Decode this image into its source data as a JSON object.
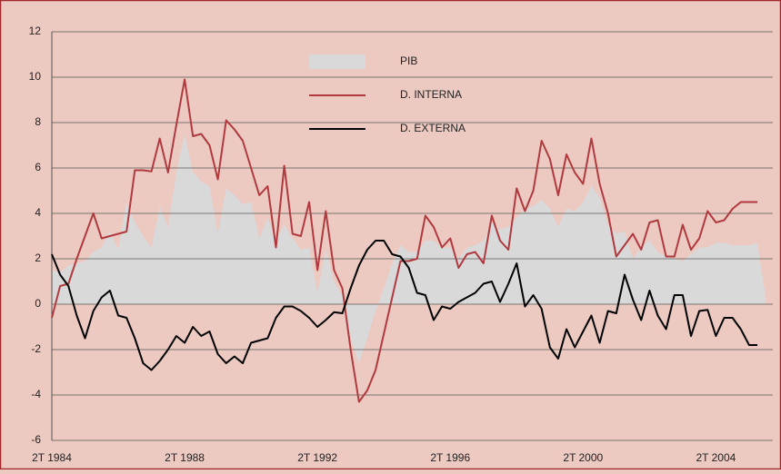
{
  "chart_data": {
    "type": "line",
    "categories": [
      "2T 1984",
      null,
      null,
      null,
      null,
      null,
      null,
      null,
      null,
      null,
      null,
      null,
      null,
      null,
      null,
      null,
      "2T 1988",
      null,
      null,
      null,
      null,
      null,
      null,
      null,
      null,
      null,
      null,
      null,
      null,
      null,
      null,
      null,
      "2T 1992",
      null,
      null,
      null,
      null,
      null,
      null,
      null,
      null,
      null,
      null,
      null,
      null,
      null,
      null,
      null,
      "2T 1996",
      null,
      null,
      null,
      null,
      null,
      null,
      null,
      null,
      null,
      null,
      null,
      null,
      null,
      null,
      null,
      "2T 2000",
      null,
      null,
      null,
      null,
      null,
      null,
      null,
      null,
      null,
      null,
      null,
      null,
      null,
      null,
      null,
      "2T 2004",
      null,
      null,
      null,
      null,
      null,
      null
    ],
    "series": [
      {
        "name": "PIB",
        "kind": "area",
        "color": "#d9d9d9",
        "values": [
          1.5,
          1.4,
          1.7,
          1.8,
          1.9,
          2.3,
          2.5,
          3.2,
          2.4,
          4.5,
          3.6,
          3.0,
          2.5,
          4.3,
          3.4,
          5.8,
          7.5,
          5.8,
          5.4,
          5.2,
          3.1,
          5.1,
          4.8,
          4.4,
          4.5,
          2.9,
          3.8,
          2.8,
          3.5,
          2.9,
          2.4,
          2.5,
          0.5,
          2.4,
          1.0,
          0.4,
          -1.5,
          -2.6,
          -1.5,
          -0.3,
          0.7,
          1.8,
          2.6,
          2.3,
          2.3,
          2.8,
          2.8,
          2.5,
          2.5,
          2.0,
          2.5,
          2.6,
          2.8,
          3.6,
          3.3,
          3.4,
          3.8,
          4.2,
          4.3,
          4.6,
          4.2,
          3.4,
          4.2,
          4.1,
          4.5,
          5.2,
          4.7,
          3.5,
          3.1,
          3.2,
          2.0,
          2.5,
          2.8,
          2.3,
          2.1,
          2.0,
          1.9,
          2.2,
          2.5,
          2.5,
          2.7,
          2.7,
          2.6,
          2.6,
          2.6,
          2.7,
          0.3
        ]
      },
      {
        "name": "D. INTERNA",
        "kind": "line",
        "color": "#b03a3f",
        "values": [
          -0.6,
          0.8,
          0.9,
          2.0,
          3.0,
          4.0,
          2.9,
          3.0,
          3.1,
          3.2,
          5.9,
          5.9,
          5.85,
          7.3,
          5.8,
          7.9,
          9.9,
          7.4,
          7.5,
          7.0,
          5.5,
          8.1,
          7.7,
          7.2,
          6.0,
          4.8,
          5.2,
          2.5,
          6.1,
          3.1,
          3.0,
          4.5,
          1.5,
          4.1,
          1.5,
          0.7,
          -2.0,
          -4.3,
          -3.8,
          -2.9,
          -1.3,
          0.3,
          1.9,
          1.9,
          2.0,
          3.9,
          3.4,
          2.5,
          2.9,
          1.6,
          2.2,
          2.3,
          1.8,
          3.9,
          2.8,
          2.4,
          5.1,
          4.1,
          5.0,
          7.2,
          6.4,
          4.8,
          6.6,
          5.8,
          5.3,
          7.3,
          5.3,
          4.0,
          2.1,
          2.6,
          3.1,
          2.4,
          3.6,
          3.7,
          2.1,
          2.1,
          3.5,
          2.4,
          2.9,
          4.1,
          3.6,
          3.7,
          4.2,
          4.5,
          4.5,
          4.5,
          null
        ]
      },
      {
        "name": "D. EXTERNA",
        "kind": "line",
        "color": "#000000",
        "values": [
          2.2,
          1.3,
          0.8,
          -0.5,
          -1.5,
          -0.3,
          0.3,
          0.6,
          -0.5,
          -0.6,
          -1.5,
          -2.6,
          -2.9,
          -2.5,
          -2.0,
          -1.4,
          -1.7,
          -1.0,
          -1.4,
          -1.2,
          -2.2,
          -2.6,
          -2.3,
          -2.6,
          -1.7,
          -1.6,
          -1.5,
          -0.6,
          -0.1,
          -0.1,
          -0.3,
          -0.6,
          -1.0,
          -0.7,
          -0.35,
          -0.4,
          0.7,
          1.7,
          2.4,
          2.8,
          2.8,
          2.2,
          2.1,
          1.6,
          0.5,
          0.4,
          -0.7,
          -0.1,
          -0.2,
          0.1,
          0.3,
          0.5,
          0.9,
          1.0,
          0.1,
          0.9,
          1.8,
          -0.1,
          0.4,
          -0.2,
          -1.9,
          -2.4,
          -1.1,
          -1.9,
          -1.2,
          -0.5,
          -1.7,
          -0.3,
          -0.4,
          1.3,
          0.2,
          -0.7,
          0.6,
          -0.5,
          -1.1,
          0.4,
          0.4,
          -1.4,
          -0.3,
          -0.25,
          -1.4,
          -0.6,
          -0.6,
          -1.1,
          -1.8,
          -1.8,
          null
        ]
      }
    ],
    "ylim": [
      -6,
      12
    ],
    "yticks": [
      -6,
      -4,
      -2,
      0,
      2,
      4,
      6,
      8,
      10,
      12
    ],
    "grid": true,
    "legend": "top-center"
  }
}
